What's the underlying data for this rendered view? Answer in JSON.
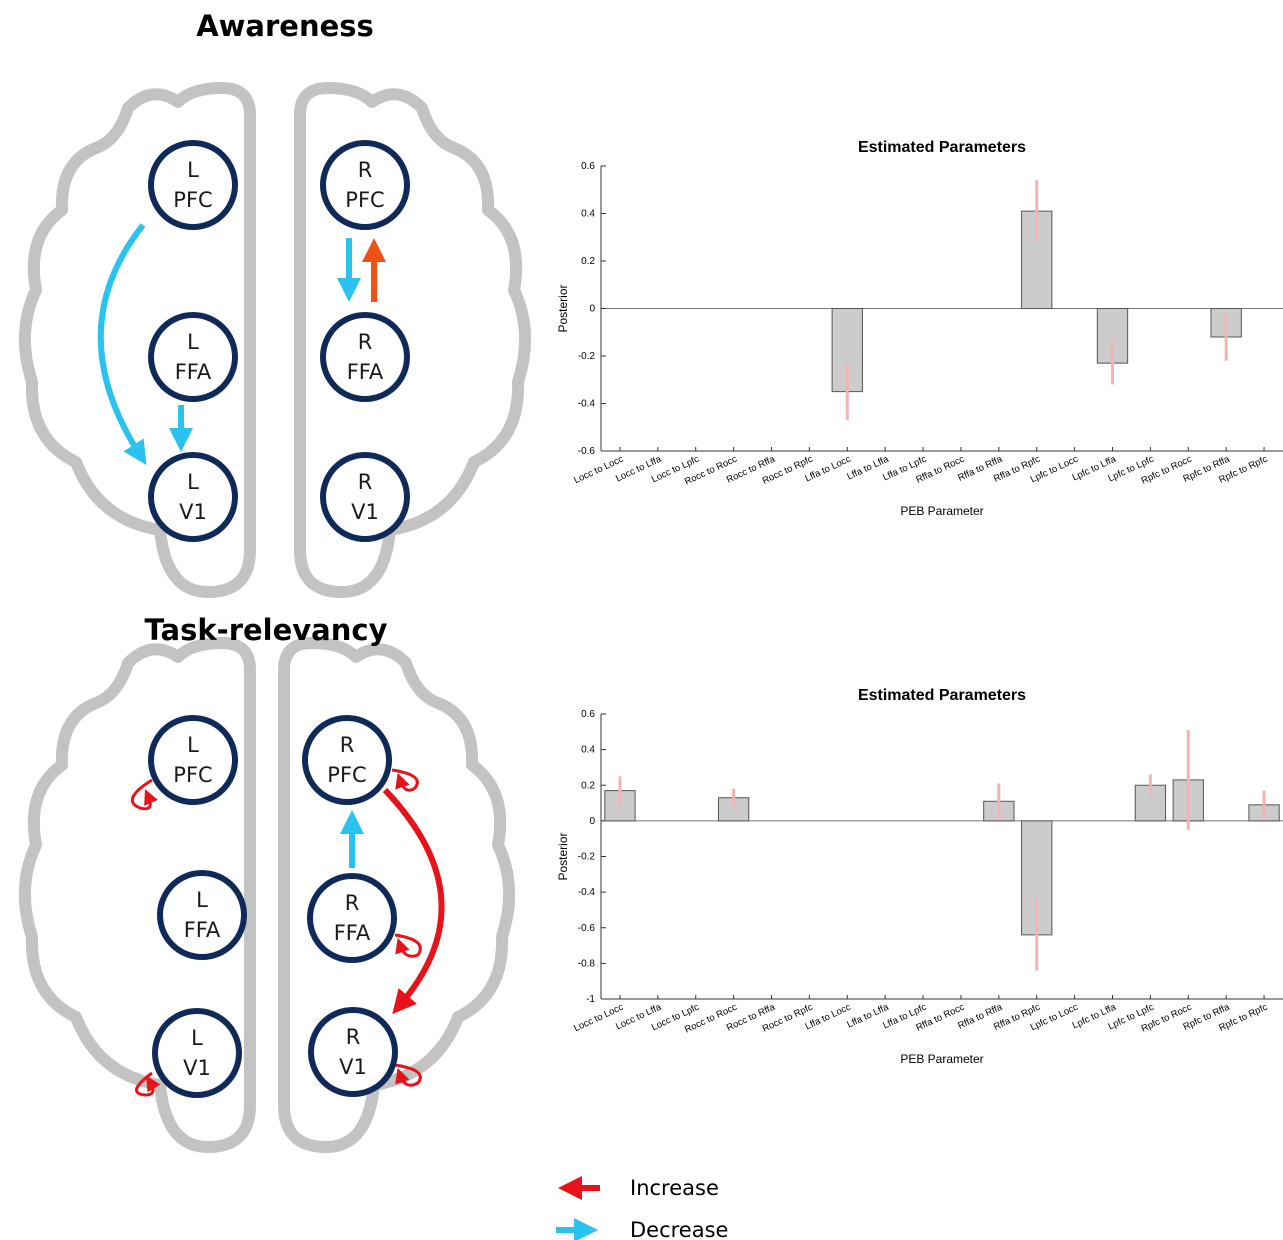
{
  "chart_data": [
    {
      "type": "bar",
      "title": "Estimated Parameters",
      "x_label": "PEB Parameter",
      "y_label": "Posterior",
      "categories": [
        "Locc to Locc",
        "Locc to Lffa",
        "Locc to Lpfc",
        "Rocc to Rocc",
        "Rocc to Rffa",
        "Rocc to Rpfc",
        "Lffa to Locc",
        "Lffa to Lffa",
        "Lffa to Lpfc",
        "Rffa to Rocc",
        "Rffa to Rffa",
        "Rffa to Rpfc",
        "Lpfc to Locc",
        "Lpfc to Lffa",
        "Lpfc to Lpfc",
        "Rpfc to Rocc",
        "Rpfc to Rffa",
        "Rpfc to Rpfc"
      ],
      "values": [
        0,
        0,
        0,
        0,
        0,
        0,
        -0.35,
        0,
        0,
        0,
        0,
        0.41,
        0,
        -0.23,
        0,
        0,
        -0.12,
        0
      ],
      "errors": [
        0,
        0,
        0,
        0,
        0,
        0,
        0.12,
        0,
        0,
        0,
        0,
        0.13,
        0,
        0.09,
        0,
        0,
        0.1,
        0
      ],
      "color": "#cccccc",
      "error_color": "#f4b3b3",
      "ylim": [
        -0.6,
        0.6
      ],
      "yticks": [
        -0.6,
        -0.4,
        -0.2,
        0,
        0.2,
        0.4,
        0.6
      ]
    },
    {
      "type": "bar",
      "title": "Estimated Parameters",
      "x_label": "PEB Parameter",
      "y_label": "Posterior",
      "categories": [
        "Locc to Locc",
        "Locc to Lffa",
        "Locc to Lpfc",
        "Rocc to Rocc",
        "Rocc to Rffa",
        "Rocc to Rpfc",
        "Lffa to Locc",
        "Lffa to Lffa",
        "Lffa to Lpfc",
        "Rffa to Rocc",
        "Rffa to Rffa",
        "Rffa to Rpfc",
        "Lpfc to Locc",
        "Lpfc to Lffa",
        "Lpfc to Lpfc",
        "Rpfc to Rocc",
        "Rpfc to Rffa",
        "Rpfc to Rpfc"
      ],
      "values": [
        0.17,
        0,
        0,
        0.13,
        0,
        0,
        0,
        0,
        0,
        0,
        0.11,
        -0.64,
        0,
        0,
        0.2,
        0.23,
        0,
        0.09
      ],
      "errors": [
        0.08,
        0,
        0,
        0.05,
        0,
        0,
        0,
        0,
        0,
        0,
        0.1,
        0.2,
        0,
        0,
        0.06,
        0.28,
        0,
        0.08
      ],
      "color": "#cccccc",
      "error_color": "#f4b3b3",
      "ylim": [
        -1,
        0.6
      ],
      "yticks": [
        -1,
        -0.8,
        -0.6,
        -0.4,
        -0.2,
        0,
        0.2,
        0.4,
        0.6
      ]
    }
  ],
  "diagrams": [
    {
      "title": "Awareness",
      "nodes": [
        {
          "side": "L",
          "region": "PFC"
        },
        {
          "side": "L",
          "region": "FFA"
        },
        {
          "side": "L",
          "region": "V1"
        },
        {
          "side": "R",
          "region": "PFC"
        },
        {
          "side": "R",
          "region": "FFA"
        },
        {
          "side": "R",
          "region": "V1"
        }
      ]
    },
    {
      "title": "Task-relevancy",
      "nodes": [
        {
          "side": "L",
          "region": "PFC"
        },
        {
          "side": "L",
          "region": "FFA"
        },
        {
          "side": "L",
          "region": "V1"
        },
        {
          "side": "R",
          "region": "PFC"
        },
        {
          "side": "R",
          "region": "FFA"
        },
        {
          "side": "R",
          "region": "V1"
        }
      ]
    }
  ],
  "legend": {
    "increase": "Increase",
    "decrease": "Decrease"
  }
}
